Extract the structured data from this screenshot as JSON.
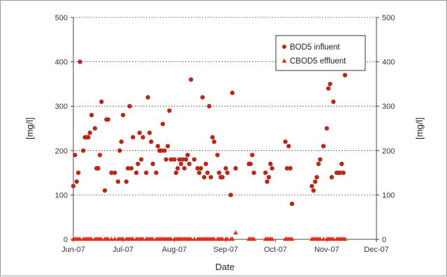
{
  "chart_data": {
    "type": "scatter",
    "xlabel": "Date",
    "ylabel_left": "[mg/l]",
    "ylabel_right": "[mg/l]",
    "x_ticks": [
      "Jun-07",
      "Jul-07",
      "Aug-07",
      "Sep-07",
      "Oct-07",
      "Nov-07",
      "Dec-07"
    ],
    "x_tick_dates": [
      "2007-06-01",
      "2007-07-01",
      "2007-08-01",
      "2007-09-01",
      "2007-10-01",
      "2007-11-01",
      "2007-12-01"
    ],
    "xlim": [
      "2007-06-01",
      "2007-12-01"
    ],
    "ylim": [
      0,
      500
    ],
    "y_ticks": [
      "0",
      "100",
      "200",
      "300",
      "400",
      "500"
    ],
    "grid": "horizontal dashed",
    "legend_position": "top-right",
    "series": [
      {
        "name": "BOD5 influent",
        "marker": "circle",
        "color": "#b52a1c",
        "points": [
          [
            "2007-06-01",
            120
          ],
          [
            "2007-06-02",
            190
          ],
          [
            "2007-06-03",
            130
          ],
          [
            "2007-06-04",
            150
          ],
          [
            "2007-06-05",
            400
          ],
          [
            "2007-06-07",
            200
          ],
          [
            "2007-06-08",
            230
          ],
          [
            "2007-06-09",
            230
          ],
          [
            "2007-06-10",
            230
          ],
          [
            "2007-06-11",
            240
          ],
          [
            "2007-06-12",
            280
          ],
          [
            "2007-06-14",
            250
          ],
          [
            "2007-06-15",
            160
          ],
          [
            "2007-06-16",
            160
          ],
          [
            "2007-06-17",
            190
          ],
          [
            "2007-06-18",
            310
          ],
          [
            "2007-06-20",
            110
          ],
          [
            "2007-06-21",
            270
          ],
          [
            "2007-06-22",
            270
          ],
          [
            "2007-06-24",
            150
          ],
          [
            "2007-06-26",
            150
          ],
          [
            "2007-06-28",
            130
          ],
          [
            "2007-06-29",
            200
          ],
          [
            "2007-06-30",
            220
          ],
          [
            "2007-07-01",
            280
          ],
          [
            "2007-07-03",
            130
          ],
          [
            "2007-07-04",
            160
          ],
          [
            "2007-07-05",
            300
          ],
          [
            "2007-07-06",
            160
          ],
          [
            "2007-07-07",
            230
          ],
          [
            "2007-07-09",
            150
          ],
          [
            "2007-07-10",
            170
          ],
          [
            "2007-07-11",
            240
          ],
          [
            "2007-07-12",
            180
          ],
          [
            "2007-07-13",
            230
          ],
          [
            "2007-07-15",
            150
          ],
          [
            "2007-07-16",
            320
          ],
          [
            "2007-07-17",
            240
          ],
          [
            "2007-07-18",
            220
          ],
          [
            "2007-07-19",
            170
          ],
          [
            "2007-07-21",
            150
          ],
          [
            "2007-07-22",
            210
          ],
          [
            "2007-07-23",
            200
          ],
          [
            "2007-07-24",
            200
          ],
          [
            "2007-07-25",
            260
          ],
          [
            "2007-07-26",
            200
          ],
          [
            "2007-07-27",
            180
          ],
          [
            "2007-07-28",
            210
          ],
          [
            "2007-07-29",
            290
          ],
          [
            "2007-07-30",
            180
          ],
          [
            "2007-08-01",
            180
          ],
          [
            "2007-08-02",
            150
          ],
          [
            "2007-08-03",
            160
          ],
          [
            "2007-08-04",
            180
          ],
          [
            "2007-08-05",
            170
          ],
          [
            "2007-08-06",
            180
          ],
          [
            "2007-08-07",
            160
          ],
          [
            "2007-08-08",
            180
          ],
          [
            "2007-08-09",
            190
          ],
          [
            "2007-08-10",
            170
          ],
          [
            "2007-08-11",
            360
          ],
          [
            "2007-08-13",
            180
          ],
          [
            "2007-08-15",
            160
          ],
          [
            "2007-08-16",
            150
          ],
          [
            "2007-08-17",
            160
          ],
          [
            "2007-08-18",
            320
          ],
          [
            "2007-08-19",
            140
          ],
          [
            "2007-08-20",
            170
          ],
          [
            "2007-08-21",
            150
          ],
          [
            "2007-08-22",
            300
          ],
          [
            "2007-08-23",
            140
          ],
          [
            "2007-08-24",
            230
          ],
          [
            "2007-08-25",
            220
          ],
          [
            "2007-08-27",
            190
          ],
          [
            "2007-08-28",
            150
          ],
          [
            "2007-08-29",
            140
          ],
          [
            "2007-08-30",
            140
          ],
          [
            "2007-09-01",
            160
          ],
          [
            "2007-09-02",
            150
          ],
          [
            "2007-09-04",
            100
          ],
          [
            "2007-09-05",
            330
          ],
          [
            "2007-09-07",
            160
          ],
          [
            "2007-09-15",
            170
          ],
          [
            "2007-09-16",
            170
          ],
          [
            "2007-09-17",
            190
          ],
          [
            "2007-09-18",
            150
          ],
          [
            "2007-09-25",
            150
          ],
          [
            "2007-09-26",
            130
          ],
          [
            "2007-09-27",
            140
          ],
          [
            "2007-09-28",
            170
          ],
          [
            "2007-09-29",
            160
          ],
          [
            "2007-10-07",
            220
          ],
          [
            "2007-10-08",
            160
          ],
          [
            "2007-10-09",
            210
          ],
          [
            "2007-10-10",
            160
          ],
          [
            "2007-10-11",
            80
          ],
          [
            "2007-10-23",
            120
          ],
          [
            "2007-10-24",
            110
          ],
          [
            "2007-10-25",
            130
          ],
          [
            "2007-10-26",
            140
          ],
          [
            "2007-10-27",
            170
          ],
          [
            "2007-10-28",
            180
          ],
          [
            "2007-10-30",
            210
          ],
          [
            "2007-11-01",
            250
          ],
          [
            "2007-11-02",
            340
          ],
          [
            "2007-11-03",
            350
          ],
          [
            "2007-11-04",
            140
          ],
          [
            "2007-11-05",
            310
          ],
          [
            "2007-11-07",
            150
          ],
          [
            "2007-11-08",
            150
          ],
          [
            "2007-11-09",
            150
          ],
          [
            "2007-11-10",
            170
          ],
          [
            "2007-11-11",
            150
          ],
          [
            "2007-11-12",
            370
          ]
        ]
      },
      {
        "name": "CBOD5 effluent",
        "marker": "triangle",
        "color": "#e0301e",
        "points": [
          [
            "2007-06-01",
            1
          ],
          [
            "2007-06-02",
            1
          ],
          [
            "2007-06-03",
            1
          ],
          [
            "2007-06-04",
            1
          ],
          [
            "2007-06-05",
            1
          ],
          [
            "2007-06-07",
            1
          ],
          [
            "2007-06-08",
            1
          ],
          [
            "2007-06-09",
            1
          ],
          [
            "2007-06-10",
            1
          ],
          [
            "2007-06-11",
            1
          ],
          [
            "2007-06-12",
            1
          ],
          [
            "2007-06-14",
            1
          ],
          [
            "2007-06-15",
            1
          ],
          [
            "2007-06-16",
            1
          ],
          [
            "2007-06-17",
            1
          ],
          [
            "2007-06-18",
            1
          ],
          [
            "2007-06-20",
            1
          ],
          [
            "2007-06-21",
            1
          ],
          [
            "2007-06-22",
            1
          ],
          [
            "2007-06-24",
            1
          ],
          [
            "2007-06-26",
            1
          ],
          [
            "2007-06-28",
            1
          ],
          [
            "2007-06-29",
            1
          ],
          [
            "2007-06-30",
            1
          ],
          [
            "2007-07-01",
            1
          ],
          [
            "2007-07-03",
            1
          ],
          [
            "2007-07-04",
            1
          ],
          [
            "2007-07-05",
            1
          ],
          [
            "2007-07-06",
            1
          ],
          [
            "2007-07-07",
            1
          ],
          [
            "2007-07-09",
            1
          ],
          [
            "2007-07-10",
            1
          ],
          [
            "2007-07-11",
            1
          ],
          [
            "2007-07-12",
            1
          ],
          [
            "2007-07-13",
            1
          ],
          [
            "2007-07-15",
            1
          ],
          [
            "2007-07-16",
            1
          ],
          [
            "2007-07-17",
            1
          ],
          [
            "2007-07-18",
            1
          ],
          [
            "2007-07-19",
            1
          ],
          [
            "2007-07-21",
            1
          ],
          [
            "2007-07-22",
            1
          ],
          [
            "2007-07-23",
            1
          ],
          [
            "2007-07-24",
            1
          ],
          [
            "2007-07-25",
            1
          ],
          [
            "2007-07-26",
            1
          ],
          [
            "2007-07-27",
            1
          ],
          [
            "2007-07-28",
            1
          ],
          [
            "2007-07-29",
            1
          ],
          [
            "2007-07-30",
            1
          ],
          [
            "2007-08-01",
            1
          ],
          [
            "2007-08-02",
            1
          ],
          [
            "2007-08-03",
            1
          ],
          [
            "2007-08-04",
            1
          ],
          [
            "2007-08-05",
            1
          ],
          [
            "2007-08-06",
            1
          ],
          [
            "2007-08-07",
            1
          ],
          [
            "2007-08-08",
            1
          ],
          [
            "2007-08-09",
            1
          ],
          [
            "2007-08-10",
            1
          ],
          [
            "2007-08-11",
            1
          ],
          [
            "2007-08-13",
            1
          ],
          [
            "2007-08-15",
            1
          ],
          [
            "2007-08-16",
            1
          ],
          [
            "2007-08-17",
            1
          ],
          [
            "2007-08-18",
            1
          ],
          [
            "2007-08-19",
            1
          ],
          [
            "2007-08-20",
            1
          ],
          [
            "2007-08-21",
            1
          ],
          [
            "2007-08-22",
            1
          ],
          [
            "2007-08-23",
            1
          ],
          [
            "2007-08-24",
            1
          ],
          [
            "2007-08-25",
            1
          ],
          [
            "2007-08-27",
            1
          ],
          [
            "2007-08-28",
            1
          ],
          [
            "2007-08-29",
            1
          ],
          [
            "2007-08-30",
            1
          ],
          [
            "2007-09-01",
            1
          ],
          [
            "2007-09-02",
            1
          ],
          [
            "2007-09-04",
            1
          ],
          [
            "2007-09-05",
            1
          ],
          [
            "2007-09-07",
            15
          ],
          [
            "2007-09-15",
            1
          ],
          [
            "2007-09-16",
            1
          ],
          [
            "2007-09-17",
            1
          ],
          [
            "2007-09-18",
            1
          ],
          [
            "2007-09-25",
            1
          ],
          [
            "2007-09-26",
            1
          ],
          [
            "2007-09-27",
            1
          ],
          [
            "2007-09-28",
            1
          ],
          [
            "2007-09-29",
            1
          ],
          [
            "2007-10-07",
            1
          ],
          [
            "2007-10-08",
            1
          ],
          [
            "2007-10-09",
            1
          ],
          [
            "2007-10-10",
            1
          ],
          [
            "2007-10-11",
            1
          ],
          [
            "2007-10-23",
            1
          ],
          [
            "2007-10-24",
            1
          ],
          [
            "2007-10-25",
            1
          ],
          [
            "2007-10-26",
            1
          ],
          [
            "2007-10-27",
            1
          ],
          [
            "2007-10-28",
            1
          ],
          [
            "2007-10-30",
            1
          ],
          [
            "2007-11-01",
            1
          ],
          [
            "2007-11-02",
            1
          ],
          [
            "2007-11-03",
            1
          ],
          [
            "2007-11-04",
            1
          ],
          [
            "2007-11-05",
            1
          ],
          [
            "2007-11-07",
            1
          ],
          [
            "2007-11-08",
            1
          ],
          [
            "2007-11-09",
            1
          ],
          [
            "2007-11-10",
            1
          ],
          [
            "2007-11-11",
            1
          ],
          [
            "2007-11-12",
            1
          ]
        ]
      }
    ]
  }
}
